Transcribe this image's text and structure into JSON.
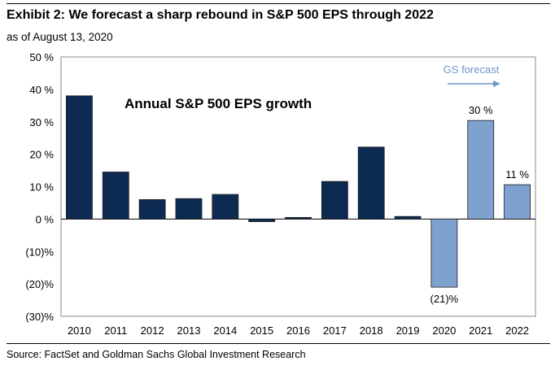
{
  "header": {
    "title": "Exhibit 2: We forecast a sharp rebound in S&P 500 EPS through 2022",
    "subtitle": "as of August 13, 2020"
  },
  "footer": {
    "source": "Source: FactSet and Goldman Sachs Global Investment Research"
  },
  "colors": {
    "actual": "#0d2b52",
    "forecast": "#7ea1cf",
    "forecast_text": "#6f97c9",
    "frame": "#888888"
  },
  "chart_data": {
    "type": "bar",
    "title": "Annual S&P 500 EPS growth",
    "categories": [
      "2010",
      "2011",
      "2012",
      "2013",
      "2014",
      "2015",
      "2016",
      "2017",
      "2018",
      "2019",
      "2020",
      "2021",
      "2022"
    ],
    "values": [
      38,
      14.5,
      6,
      6.3,
      7.6,
      -0.8,
      0.5,
      11.6,
      22.2,
      0.8,
      -21,
      30.4,
      10.6
    ],
    "forecast_flags": [
      false,
      false,
      false,
      false,
      false,
      false,
      false,
      false,
      false,
      false,
      true,
      true,
      true
    ],
    "ylim": [
      -30,
      50
    ],
    "yticks": [
      50,
      40,
      30,
      20,
      10,
      0,
      -10,
      -20,
      -30
    ],
    "ytick_labels": [
      "50 %",
      "40 %",
      "30 %",
      "20 %",
      "10 %",
      "0 %",
      "(10)%",
      "(20)%",
      "(30)%"
    ],
    "data_labels": [
      {
        "category": "2020",
        "text": "(21)%"
      },
      {
        "category": "2021",
        "text": "30 %"
      },
      {
        "category": "2022",
        "text": "11 %"
      }
    ],
    "annotation": "GS forecast",
    "xlabel": "",
    "ylabel": ""
  }
}
